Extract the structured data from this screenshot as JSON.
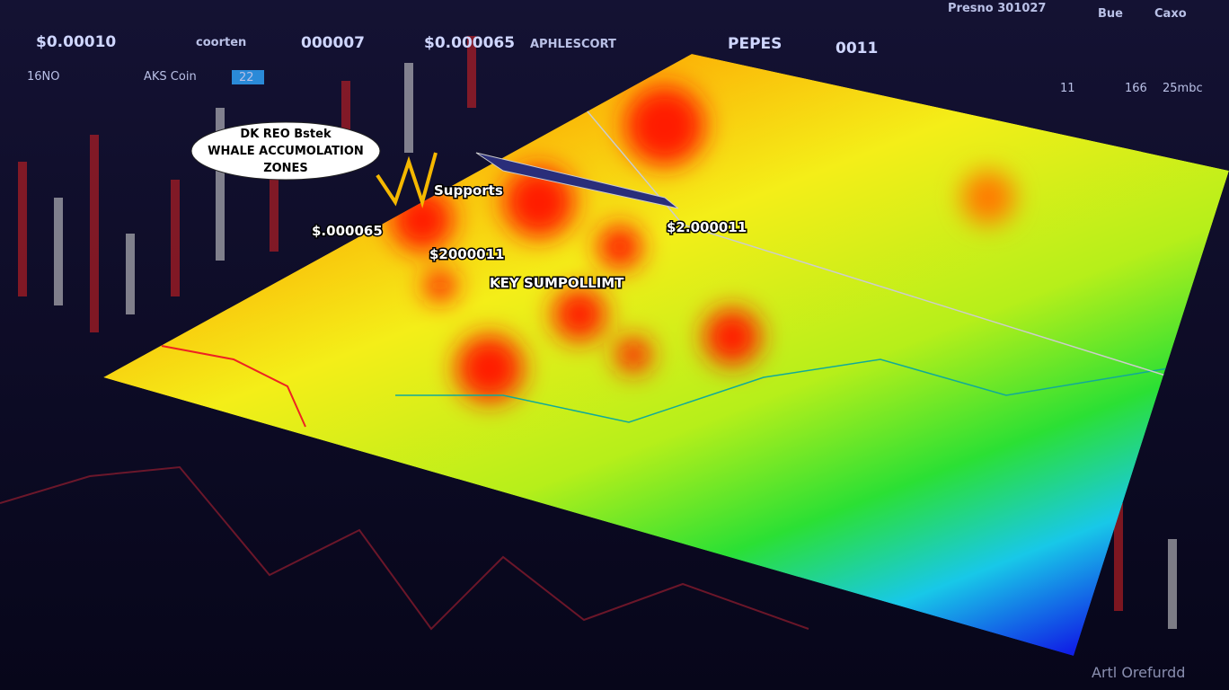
{
  "top_bar": {
    "items": [
      "$0.00010",
      "coorten",
      "000007",
      "$0.000065",
      "APHLESCORT",
      "PEPES",
      "0011",
      "Presno 301027",
      "Bue",
      "Caxo"
    ],
    "left_row": [
      "16NO",
      "AKS Coin",
      "22"
    ],
    "right_row": [
      "11",
      "166",
      "25mbc"
    ]
  },
  "heatmap": {
    "callout": [
      "DK REO Bstek",
      "WHALE ACCUMOLATION",
      "ZONES"
    ],
    "labels": [
      "Supports",
      "$.000065",
      "$2000011",
      "KEY SUMPOLLIMT",
      "$2.000011"
    ]
  },
  "watermark": "Artl Orefurdd"
}
